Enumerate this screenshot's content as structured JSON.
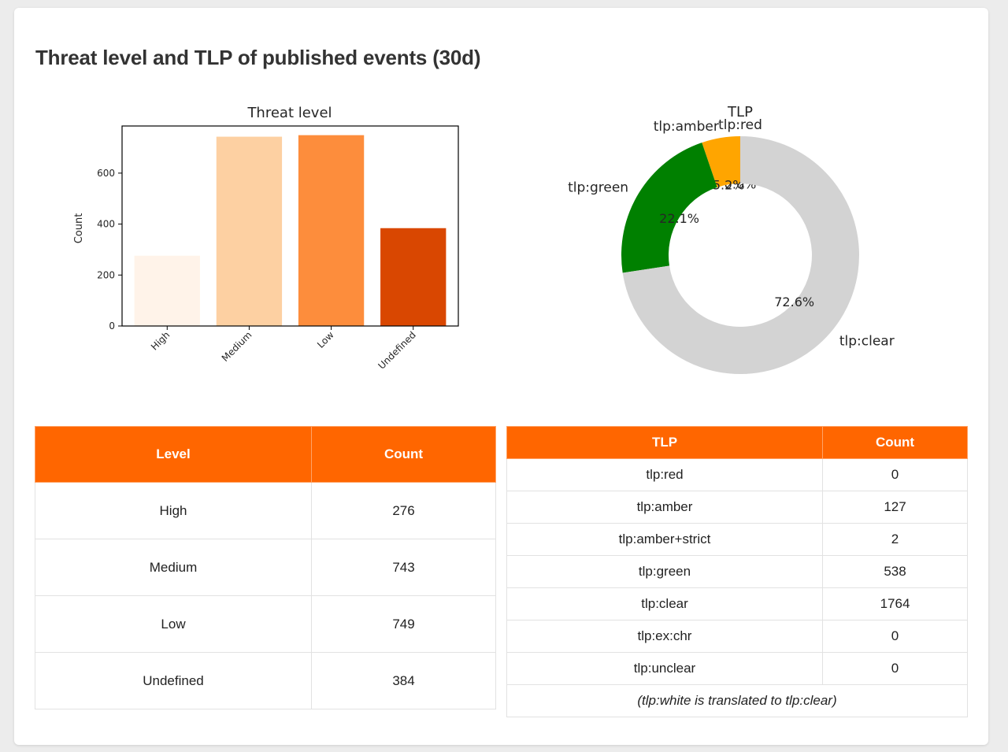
{
  "page": {
    "title": "Threat level and TLP of published events (30d)"
  },
  "chart_data": [
    {
      "type": "bar",
      "title": "Threat level",
      "xlabel": "",
      "ylabel": "Count",
      "categories": [
        "High",
        "Medium",
        "Low",
        "Undefined"
      ],
      "values": [
        276,
        743,
        749,
        384
      ],
      "colors": [
        "#fff3e9",
        "#fdd0a2",
        "#fd8d3c",
        "#d94701"
      ],
      "ylim": [
        0,
        785
      ],
      "yticks": [
        0,
        200,
        400,
        600
      ],
      "grid": false
    },
    {
      "type": "pie",
      "title": "TLP",
      "donut": true,
      "labels": [
        "tlp:red",
        "tlp:amber",
        "tlp:green",
        "tlp:clear"
      ],
      "values": [
        0,
        127,
        538,
        1764
      ],
      "pct_labels": [
        "0.0%",
        "5.2%",
        "22.1%",
        "72.6%"
      ],
      "colors": [
        "#ff0000",
        "#ffa500",
        "#008000",
        "#d3d3d3"
      ]
    }
  ],
  "level_table": {
    "headers": [
      "Level",
      "Count"
    ],
    "rows": [
      {
        "level": "High",
        "count": "276"
      },
      {
        "level": "Medium",
        "count": "743"
      },
      {
        "level": "Low",
        "count": "749"
      },
      {
        "level": "Undefined",
        "count": "384"
      }
    ]
  },
  "tlp_table": {
    "headers": [
      "TLP",
      "Count"
    ],
    "rows": [
      {
        "tlp": "tlp:red",
        "count": "0"
      },
      {
        "tlp": "tlp:amber",
        "count": "127"
      },
      {
        "tlp": "tlp:amber+strict",
        "count": "2"
      },
      {
        "tlp": "tlp:green",
        "count": "538"
      },
      {
        "tlp": "tlp:clear",
        "count": "1764"
      },
      {
        "tlp": "tlp:ex:chr",
        "count": "0"
      },
      {
        "tlp": "tlp:unclear",
        "count": "0"
      }
    ],
    "note": "(tlp:white is translated to tlp:clear)"
  }
}
